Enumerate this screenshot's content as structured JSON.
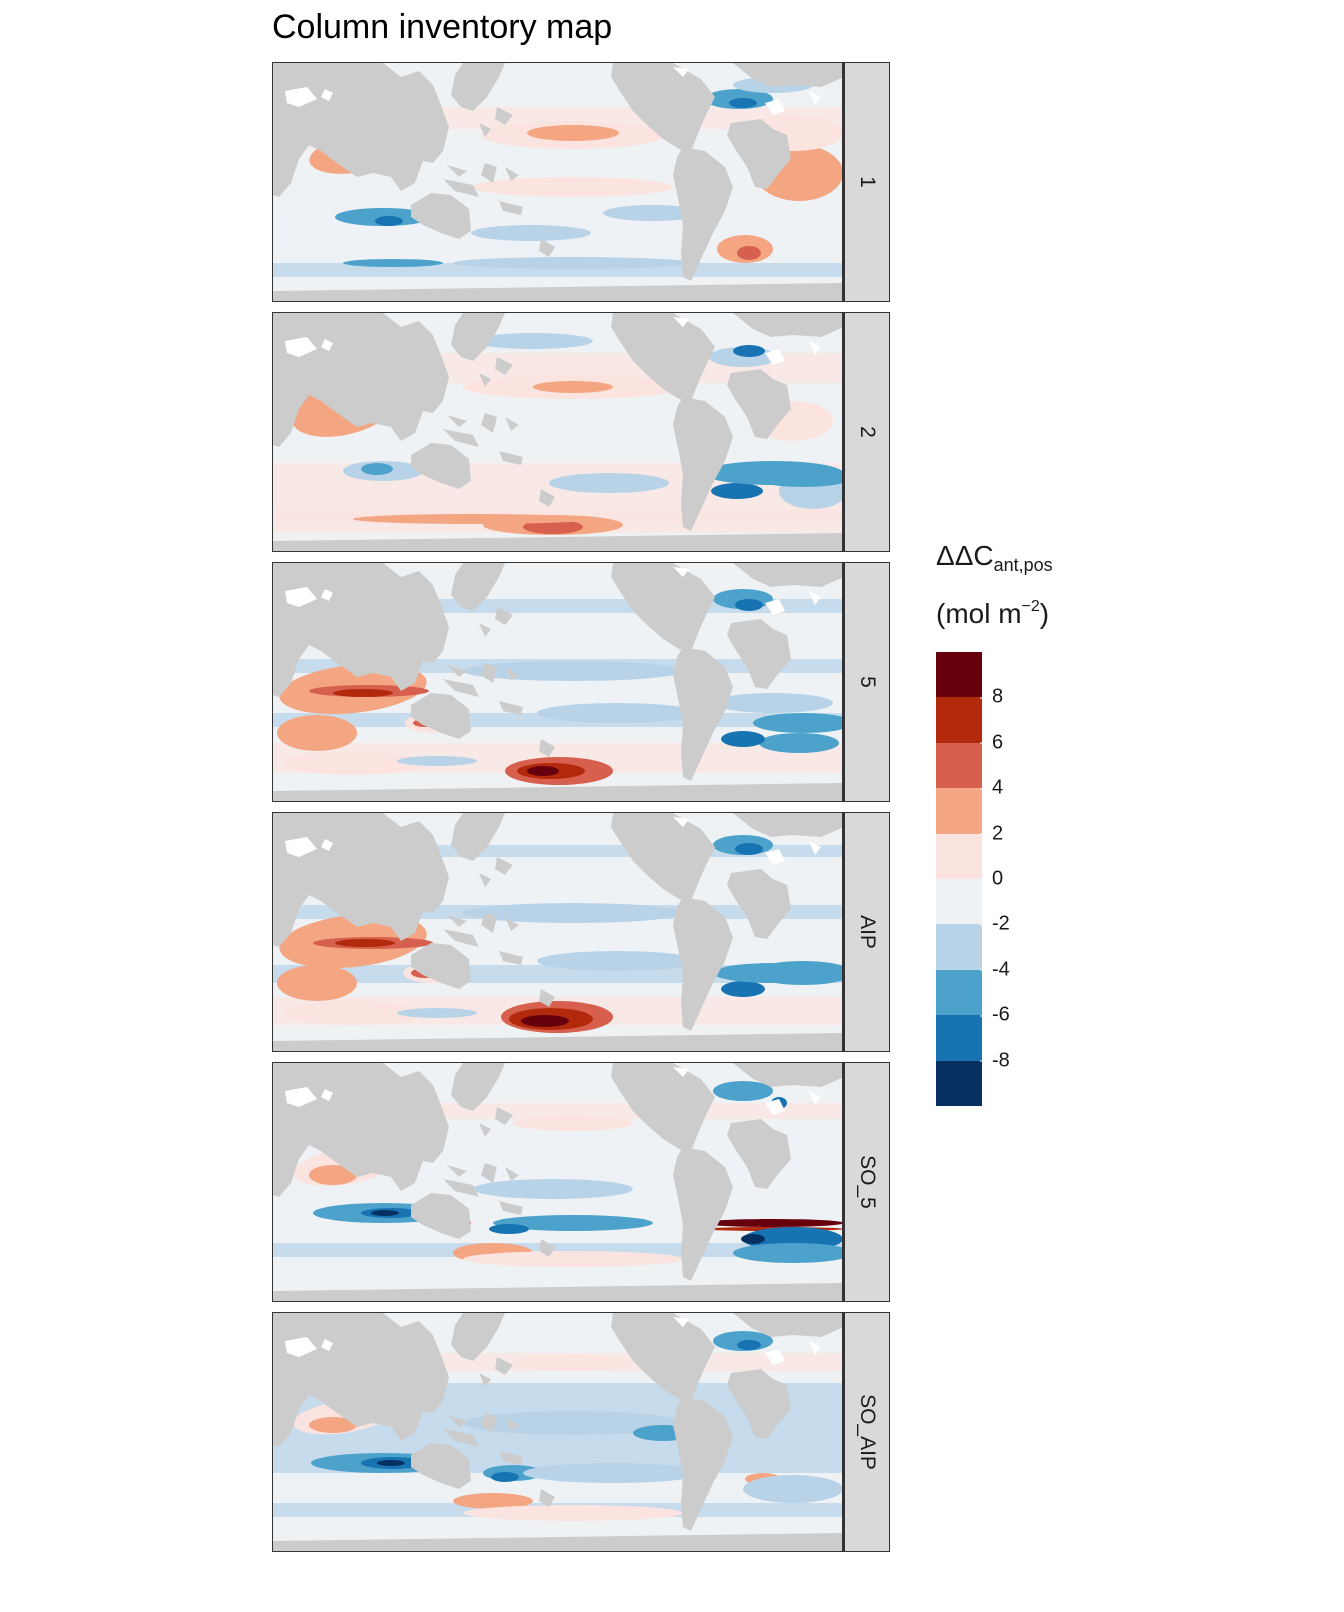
{
  "title": "Column inventory map",
  "legend": {
    "title_main": "ΔΔC",
    "title_sub": "ant,pos",
    "unit_pre": "(mol m",
    "unit_sup": "−2",
    "unit_post": ")",
    "colors": [
      "#67000d",
      "#b2290c",
      "#d6604d",
      "#f4a582",
      "#fbe4e0",
      "#eef2f5",
      "#b8d3e8",
      "#4da2cc",
      "#1873b3",
      "#053061"
    ],
    "ticks": [
      "8",
      "6",
      "4",
      "2",
      "0",
      "-2",
      "-4",
      "-6",
      "-8"
    ]
  },
  "panels": [
    {
      "label": "1"
    },
    {
      "label": "2"
    },
    {
      "label": "5"
    },
    {
      "label": "AIP"
    },
    {
      "label": "SO_5"
    },
    {
      "label": "SO_AIP"
    }
  ],
  "chart_data": {
    "type": "heatmap",
    "title": "Column inventory map",
    "facets": [
      "1",
      "2",
      "5",
      "AIP",
      "SO_5",
      "SO_AIP"
    ],
    "variable": "ΔΔC ant,pos",
    "unit": "mol m-2",
    "color_scale": {
      "breaks": [
        10,
        8,
        6,
        4,
        2,
        0,
        -2,
        -4,
        -6,
        -8,
        -10
      ],
      "colors": [
        "#67000d",
        "#b2290c",
        "#d6604d",
        "#f4a582",
        "#fbe4e0",
        "#eef2f5",
        "#b8d3e8",
        "#4da2cc",
        "#1873b3",
        "#053061"
      ],
      "tick_labels": [
        "8",
        "6",
        "4",
        "2",
        "0",
        "-2",
        "-4",
        "-6",
        "-8"
      ]
    },
    "land_color": "#cccccc"
  }
}
